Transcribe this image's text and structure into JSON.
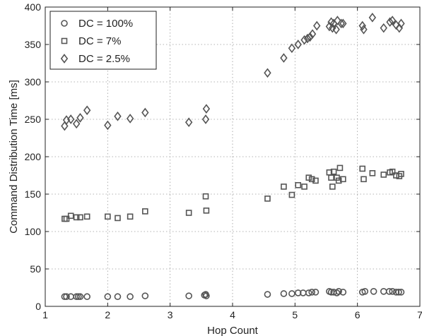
{
  "chart_data": {
    "type": "scatter",
    "title": "",
    "xlabel": "Hop Count",
    "ylabel": "Command Distribution Time [ms]",
    "xlim": [
      1,
      7
    ],
    "ylim": [
      0,
      400
    ],
    "xticks": [
      1,
      2,
      3,
      4,
      5,
      6,
      7
    ],
    "yticks": [
      0,
      50,
      100,
      150,
      200,
      250,
      300,
      350,
      400
    ],
    "grid": true,
    "legend_position": "top-left",
    "series": [
      {
        "name": "DC = 100%",
        "marker": "circle",
        "color": "#555555",
        "points": [
          [
            1.31,
            13
          ],
          [
            1.34,
            13
          ],
          [
            1.41,
            13
          ],
          [
            1.5,
            13
          ],
          [
            1.53,
            13
          ],
          [
            1.56,
            13
          ],
          [
            1.67,
            13
          ],
          [
            2.0,
            13
          ],
          [
            2.16,
            13
          ],
          [
            2.36,
            13
          ],
          [
            2.6,
            14
          ],
          [
            3.3,
            14
          ],
          [
            3.55,
            15
          ],
          [
            3.57,
            16
          ],
          [
            3.58,
            14
          ],
          [
            4.56,
            16
          ],
          [
            4.82,
            17
          ],
          [
            4.95,
            17
          ],
          [
            5.05,
            18
          ],
          [
            5.13,
            18
          ],
          [
            5.22,
            18
          ],
          [
            5.27,
            19
          ],
          [
            5.33,
            19
          ],
          [
            5.55,
            20
          ],
          [
            5.58,
            19
          ],
          [
            5.62,
            19
          ],
          [
            5.67,
            18
          ],
          [
            5.7,
            20
          ],
          [
            5.77,
            19
          ],
          [
            6.08,
            19
          ],
          [
            6.12,
            20
          ],
          [
            6.26,
            20
          ],
          [
            6.42,
            20
          ],
          [
            6.51,
            20
          ],
          [
            6.56,
            20
          ],
          [
            6.62,
            19
          ],
          [
            6.66,
            19
          ],
          [
            6.7,
            19
          ]
        ]
      },
      {
        "name": "DC = 7%",
        "marker": "square",
        "color": "#555555",
        "points": [
          [
            1.31,
            117
          ],
          [
            1.34,
            117
          ],
          [
            1.41,
            121
          ],
          [
            1.5,
            119
          ],
          [
            1.56,
            119
          ],
          [
            1.67,
            120
          ],
          [
            2.0,
            120
          ],
          [
            2.16,
            118
          ],
          [
            2.36,
            120
          ],
          [
            2.6,
            127
          ],
          [
            3.3,
            125
          ],
          [
            3.57,
            147
          ],
          [
            3.58,
            128
          ],
          [
            4.56,
            144
          ],
          [
            4.82,
            160
          ],
          [
            4.95,
            149
          ],
          [
            5.05,
            162
          ],
          [
            5.15,
            160
          ],
          [
            5.22,
            172
          ],
          [
            5.27,
            170
          ],
          [
            5.33,
            168
          ],
          [
            5.55,
            179
          ],
          [
            5.58,
            172
          ],
          [
            5.6,
            160
          ],
          [
            5.62,
            180
          ],
          [
            5.67,
            172
          ],
          [
            5.7,
            168
          ],
          [
            5.72,
            185
          ],
          [
            5.77,
            170
          ],
          [
            6.08,
            184
          ],
          [
            6.1,
            170
          ],
          [
            6.24,
            178
          ],
          [
            6.42,
            176
          ],
          [
            6.52,
            179
          ],
          [
            6.56,
            180
          ],
          [
            6.62,
            175
          ],
          [
            6.67,
            174
          ],
          [
            6.7,
            177
          ]
        ]
      },
      {
        "name": "DC = 2.5%",
        "marker": "diamond",
        "color": "#555555",
        "points": [
          [
            1.31,
            241
          ],
          [
            1.34,
            249
          ],
          [
            1.41,
            250
          ],
          [
            1.5,
            244
          ],
          [
            1.56,
            252
          ],
          [
            1.67,
            262
          ],
          [
            2.0,
            242
          ],
          [
            2.16,
            254
          ],
          [
            2.36,
            251
          ],
          [
            2.6,
            259
          ],
          [
            3.3,
            246
          ],
          [
            3.57,
            250
          ],
          [
            3.58,
            264
          ],
          [
            4.56,
            312
          ],
          [
            4.82,
            332
          ],
          [
            4.95,
            345
          ],
          [
            5.05,
            350
          ],
          [
            5.15,
            356
          ],
          [
            5.2,
            358
          ],
          [
            5.24,
            360
          ],
          [
            5.28,
            364
          ],
          [
            5.35,
            375
          ],
          [
            5.55,
            374
          ],
          [
            5.58,
            380
          ],
          [
            5.6,
            372
          ],
          [
            5.62,
            378
          ],
          [
            5.66,
            370
          ],
          [
            5.68,
            382
          ],
          [
            5.74,
            378
          ],
          [
            5.77,
            378
          ],
          [
            6.08,
            375
          ],
          [
            6.1,
            370
          ],
          [
            6.24,
            386
          ],
          [
            6.42,
            372
          ],
          [
            6.52,
            380
          ],
          [
            6.56,
            382
          ],
          [
            6.62,
            376
          ],
          [
            6.67,
            372
          ],
          [
            6.7,
            378
          ]
        ]
      }
    ]
  }
}
